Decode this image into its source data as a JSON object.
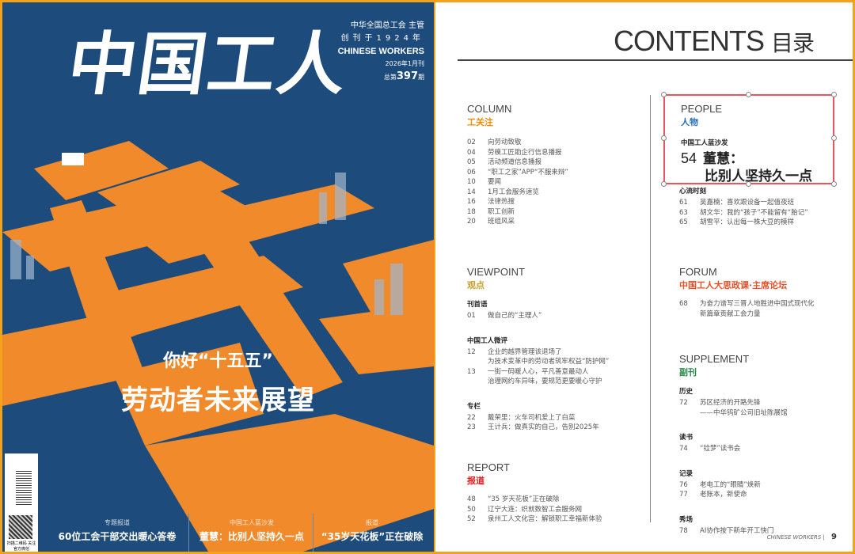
{
  "colors": {
    "frame": "#f3a21c",
    "cover_bg": "#1d4b7b",
    "cover_path": "#f08a2a",
    "column": "#f08a00",
    "viewpoint": "#c8a030",
    "people": "#2a6fb8",
    "forum": "#e8502a",
    "supplement": "#2a8a4a",
    "report": "#e02020",
    "selection": "#e8555f"
  },
  "cover": {
    "masthead": "中国工人",
    "publisher": "中华全国总工会",
    "publisher_role": "主管",
    "founded": "创刊于1924年",
    "english_title": "CHINESE WORKERS",
    "issue_date": "2026年1月刊",
    "issue_number_prefix": "总第",
    "issue_number": "397",
    "issue_number_suffix": "期",
    "headline_kicker": "你好“十五五”",
    "headline": "劳动者未来展望",
    "qr_caption": "扫描二维码 关注官方微信",
    "bottom_items": [
      {
        "kicker": "专题报道",
        "title": "60位工会干部交出暖心答卷"
      },
      {
        "kicker": "中国工人蓝沙发",
        "title": "董慧：比别人坚持久一点"
      },
      {
        "kicker": "报道",
        "title": "“35岁天花板”正在破除"
      }
    ]
  },
  "contents": {
    "title_en": "CONTENTS",
    "title_cn": "目录",
    "column": {
      "en": "COLUMN",
      "cn": "工关注",
      "items": [
        {
          "page": "02",
          "title": "向劳动致敬"
        },
        {
          "page": "04",
          "title": "劳模工匠助企行信息播报"
        },
        {
          "page": "05",
          "title": "活动频道信息播报"
        },
        {
          "page": "06",
          "title": "“职工之家”APP“不服来辩”"
        },
        {
          "page": "10",
          "title": "要闻"
        },
        {
          "page": "14",
          "title": "1月工会服务速览"
        },
        {
          "page": "16",
          "title": "法律热搜"
        },
        {
          "page": "18",
          "title": "职工创新"
        },
        {
          "page": "20",
          "title": "班组风采"
        }
      ]
    },
    "viewpoint": {
      "en": "VIEWPOINT",
      "cn": "观点",
      "groups": [
        {
          "name": "刊首语",
          "items": [
            {
              "page": "01",
              "lines": [
                "做自己的“主理人”"
              ]
            }
          ]
        },
        {
          "name": "中国工人微评",
          "items": [
            {
              "page": "12",
              "lines": [
                "企业的越界管理该退场了",
                "为技术变革中的劳动者筑牢权益“防护网”"
              ]
            },
            {
              "page": "13",
              "lines": [
                "一街一码暖人心，平凡善意最动人",
                "治理网约车异味，要规范更要暖心守护"
              ]
            }
          ]
        },
        {
          "name": "专栏",
          "items": [
            {
              "page": "22",
              "lines": [
                "戴荣里：火车司机爱上了白菜"
              ]
            },
            {
              "page": "23",
              "lines": [
                "王计兵：做真实的自己，告别2025年"
              ]
            }
          ]
        }
      ]
    },
    "report": {
      "en": "REPORT",
      "cn": "报道",
      "items": [
        {
          "page": "48",
          "title": "“35 岁天花板”正在破除"
        },
        {
          "page": "50",
          "title": "辽宁大连：织就数智工会服务网"
        },
        {
          "page": "52",
          "title": "泉州工人文化宫：解锁职工幸福新体验"
        }
      ]
    },
    "people": {
      "en": "PEOPLE",
      "cn": "人物",
      "feature_kicker": "中国工人蓝沙发",
      "feature_page": "54",
      "feature_title_1": "董慧：",
      "feature_title_2": "比别人坚持久一点",
      "group": "心流时刻",
      "items": [
        {
          "page": "61",
          "title": "吴嘉楠：喜欢跟设备一起值夜班"
        },
        {
          "page": "63",
          "title": "胡文华：我的“孩子”不能留有“胎记”"
        },
        {
          "page": "65",
          "title": "胡雪平：认出每一株大豆的模样"
        }
      ]
    },
    "forum": {
      "en": "FORUM",
      "cn": "中国工人大思政课·主席论坛",
      "items": [
        {
          "page": "68",
          "lines": [
            "为奋力谱写三晋人地胜进中国式现代化",
            "新篇章贡献工会力量"
          ]
        }
      ]
    },
    "supplement": {
      "en": "SUPPLEMENT",
      "cn": "副刊",
      "groups": [
        {
          "name": "历史",
          "items": [
            {
              "page": "72",
              "lines": [
                "苏区经济的开路先锋",
                "——中华钨矿公司旧址陈展馆"
              ]
            }
          ]
        },
        {
          "name": "读书",
          "items": [
            {
              "page": "74",
              "lines": [
                "“铨梦”读书会"
              ]
            }
          ]
        },
        {
          "name": "记录",
          "items": [
            {
              "page": "76",
              "lines": [
                "老电工的“眼睛”焕新"
              ]
            },
            {
              "page": "77",
              "lines": [
                "老账本，新使命"
              ]
            }
          ]
        },
        {
          "name": "秀场",
          "items": [
            {
              "page": "78",
              "lines": [
                "AI协作按下新年开工快门"
              ]
            }
          ]
        }
      ]
    },
    "footer_brand": "CHINESE WORKERS",
    "page_number": "9"
  }
}
